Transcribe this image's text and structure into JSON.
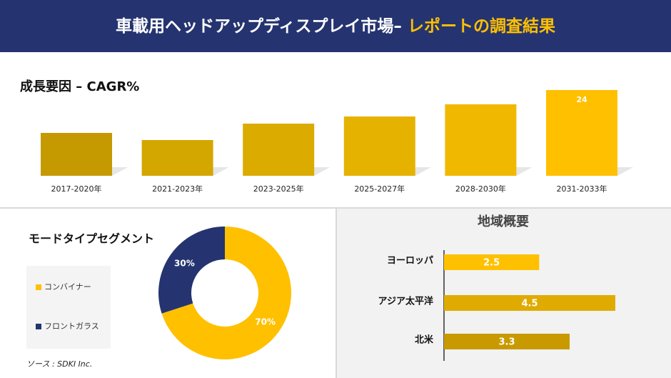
{
  "header": {
    "title": "車載用ヘッドアップディスプレイ市場– ",
    "highlight": "レポートの調査結果"
  },
  "chart_data": [
    {
      "type": "bar",
      "title": "成長要因 – CAGR%",
      "categories": [
        "2017-2020年",
        "2021-2023年",
        "2023-2025年",
        "2025-2027年",
        "2028-2030年",
        "2031-2033年"
      ],
      "values": [
        12,
        10,
        14.6,
        16.6,
        20,
        24
      ],
      "value_labels": [
        null,
        null,
        null,
        null,
        null,
        "24"
      ],
      "colors": [
        "#c49a00",
        "#d4a600",
        "#dcab00",
        "#e6b200",
        "#f0b900",
        "#ffc000"
      ]
    },
    {
      "type": "pie",
      "title": "モードタイプセグメント",
      "categories": [
        "コンバイナー",
        "フロントガラス"
      ],
      "values": [
        70,
        30
      ],
      "value_labels": [
        "70%",
        "30%"
      ],
      "colors": [
        "#ffc000",
        "#253470"
      ]
    },
    {
      "type": "hbar",
      "title": "地域概要",
      "categories": [
        "ヨーロッパ",
        "アジア太平洋",
        "北米"
      ],
      "values": [
        2.5,
        4.5,
        3.3
      ],
      "colors": [
        "#ffc000",
        "#e0ab00",
        "#c89a00"
      ]
    }
  ],
  "source": "ソース : SDKI Inc."
}
